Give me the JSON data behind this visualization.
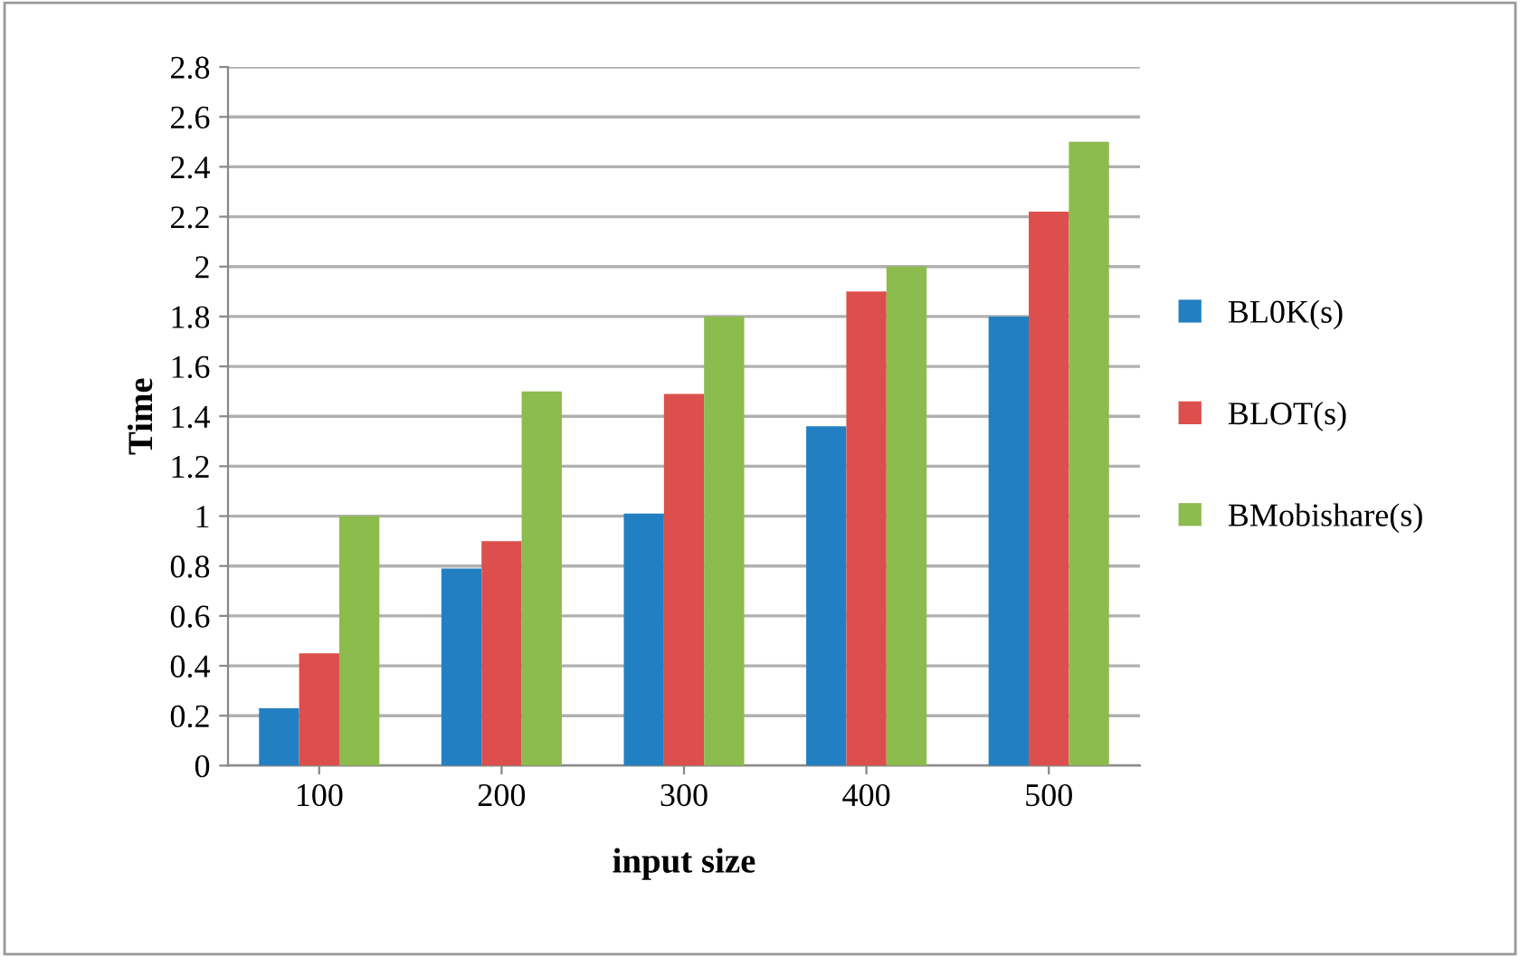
{
  "chart_data": {
    "type": "bar",
    "xlabel": "input size",
    "ylabel": "Time",
    "categories": [
      "100",
      "200",
      "300",
      "400",
      "500"
    ],
    "series": [
      {
        "name": "BL0K(s)",
        "color": "#2280c2",
        "values": [
          0.23,
          0.79,
          1.01,
          1.36,
          1.8
        ]
      },
      {
        "name": "BLOT(s)",
        "color": "#dc4f4c",
        "values": [
          0.45,
          0.9,
          1.49,
          1.9,
          2.22
        ]
      },
      {
        "name": "BMobishare(s)",
        "color": "#8cbb4e",
        "values": [
          1.0,
          1.5,
          1.8,
          2.0,
          2.5
        ]
      }
    ],
    "ylim": [
      0,
      2.8
    ],
    "yticks": [
      0,
      0.2,
      0.4,
      0.6,
      0.8,
      1,
      1.2,
      1.4,
      1.6,
      1.8,
      2,
      2.2,
      2.4,
      2.6,
      2.8
    ],
    "grid": "y",
    "legend": "right"
  }
}
